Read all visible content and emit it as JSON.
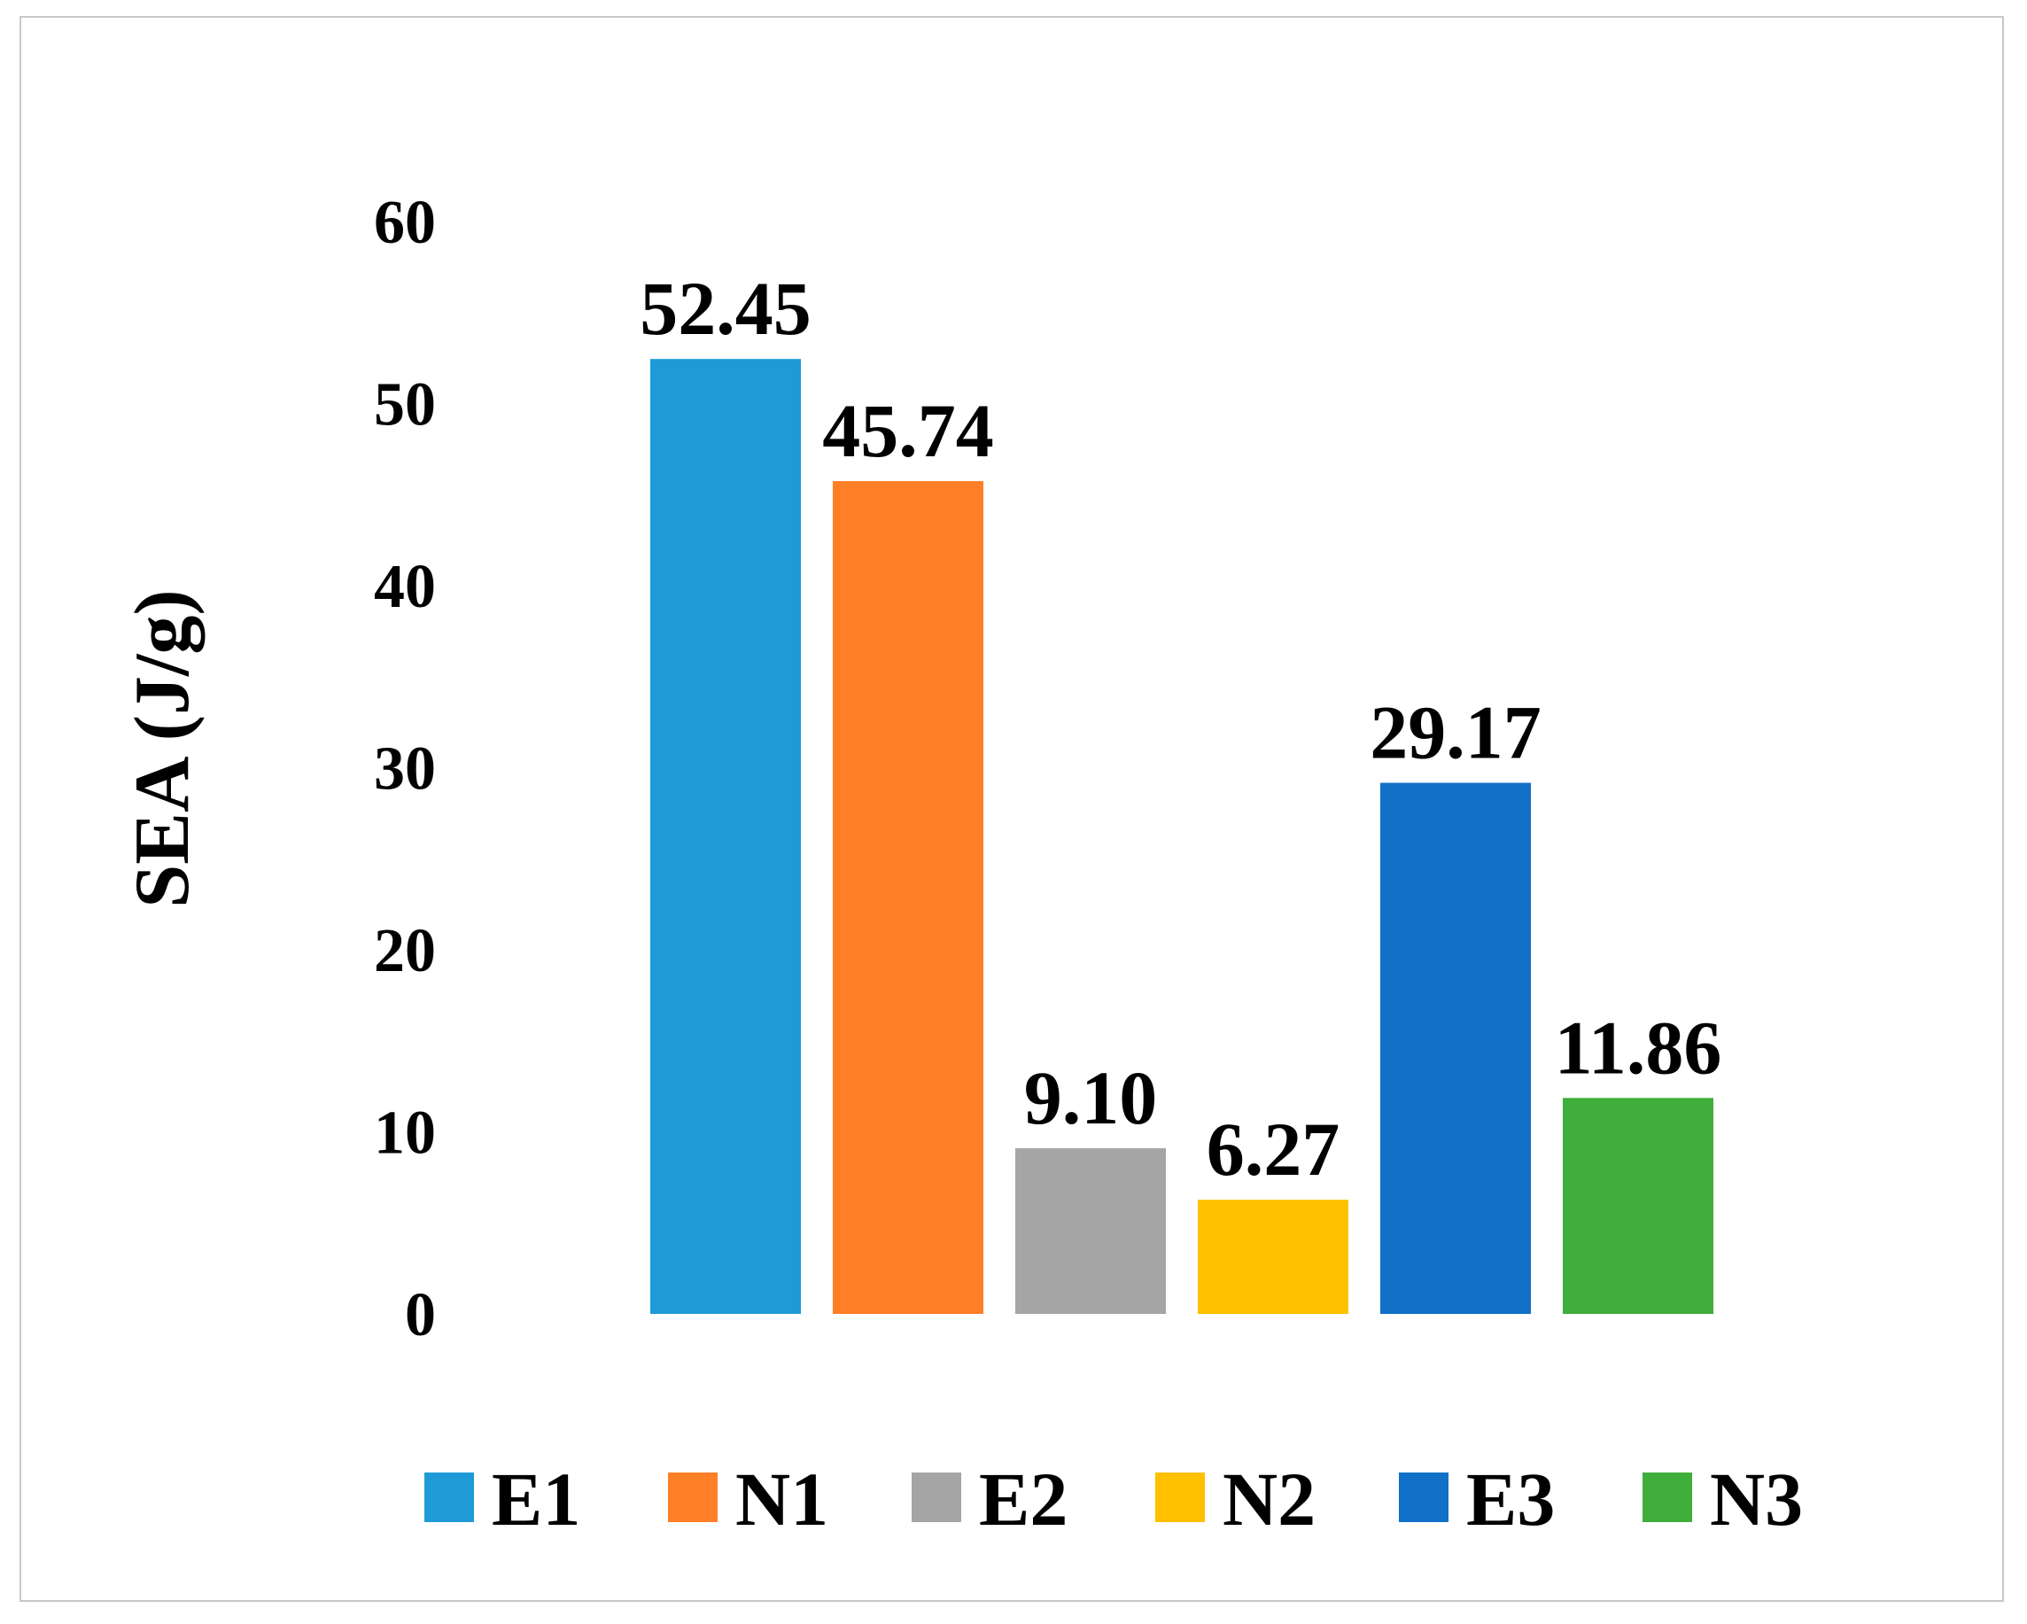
{
  "chart_data": {
    "type": "bar",
    "title": "",
    "xlabel": "",
    "ylabel": "SEA (J/g)",
    "ylim": [
      0,
      60
    ],
    "yticks": [
      0,
      10,
      20,
      30,
      40,
      50,
      60
    ],
    "grid": false,
    "legend_position": "bottom",
    "series": [
      {
        "name": "E1",
        "value": 52.45,
        "label": "52.45",
        "color": "#1e9bd7"
      },
      {
        "name": "N1",
        "value": 45.74,
        "label": "45.74",
        "color": "#ff7f27"
      },
      {
        "name": "E2",
        "value": 9.1,
        "label": "9.10",
        "color": "#a5a5a5"
      },
      {
        "name": "N2",
        "value": 6.27,
        "label": "6.27",
        "color": "#ffc000"
      },
      {
        "name": "E3",
        "value": 29.17,
        "label": "29.17",
        "color": "#1170c8"
      },
      {
        "name": "N3",
        "value": 11.86,
        "label": "11.86",
        "color": "#3fae3a"
      }
    ]
  }
}
